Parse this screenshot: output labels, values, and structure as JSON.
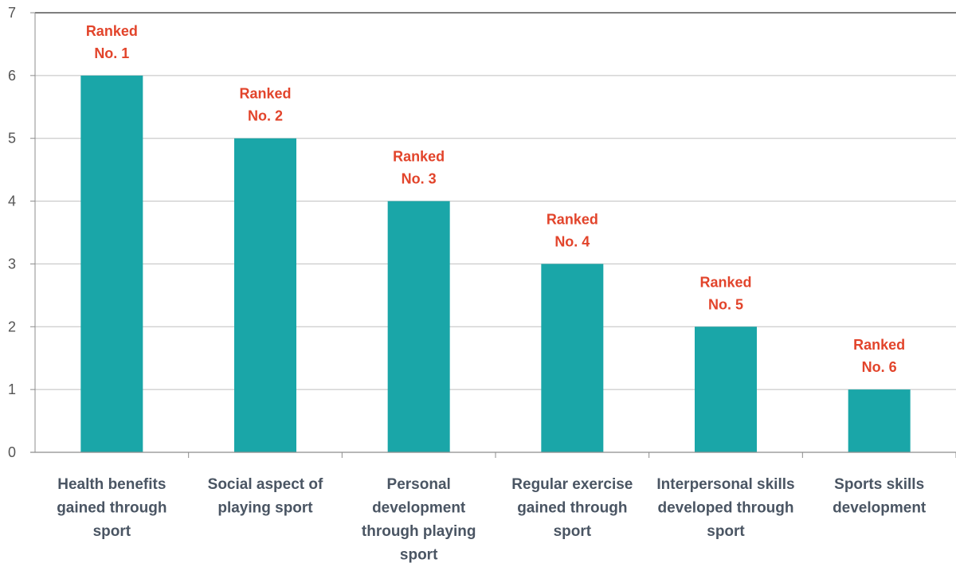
{
  "chart_data": {
    "type": "bar",
    "title": "",
    "xlabel": "",
    "ylabel": "",
    "ylim": [
      0,
      7
    ],
    "yticks": [
      0,
      1,
      2,
      3,
      4,
      5,
      6,
      7
    ],
    "grid": true,
    "categories": [
      [
        "Health benefits",
        "gained through",
        "sport"
      ],
      [
        "Social aspect of",
        "playing sport"
      ],
      [
        "Personal",
        "development",
        "through playing",
        "sport"
      ],
      [
        "Regular exercise",
        "gained through",
        "sport"
      ],
      [
        "Interpersonal skills",
        "developed through",
        "sport"
      ],
      [
        "Sports skills",
        "development"
      ]
    ],
    "values": [
      6,
      5,
      4,
      3,
      2,
      1
    ],
    "data_labels": [
      [
        "Ranked",
        "No. 1"
      ],
      [
        "Ranked",
        "No. 2"
      ],
      [
        "Ranked",
        "No. 3"
      ],
      [
        "Ranked",
        "No. 4"
      ],
      [
        "Ranked",
        "No. 5"
      ],
      [
        "Ranked",
        "No. 6"
      ]
    ],
    "colors": {
      "bar": "#1aa6a8",
      "label": "#e2442b",
      "grid": "#bfbfbf",
      "axis": "#8c8c8c"
    }
  }
}
